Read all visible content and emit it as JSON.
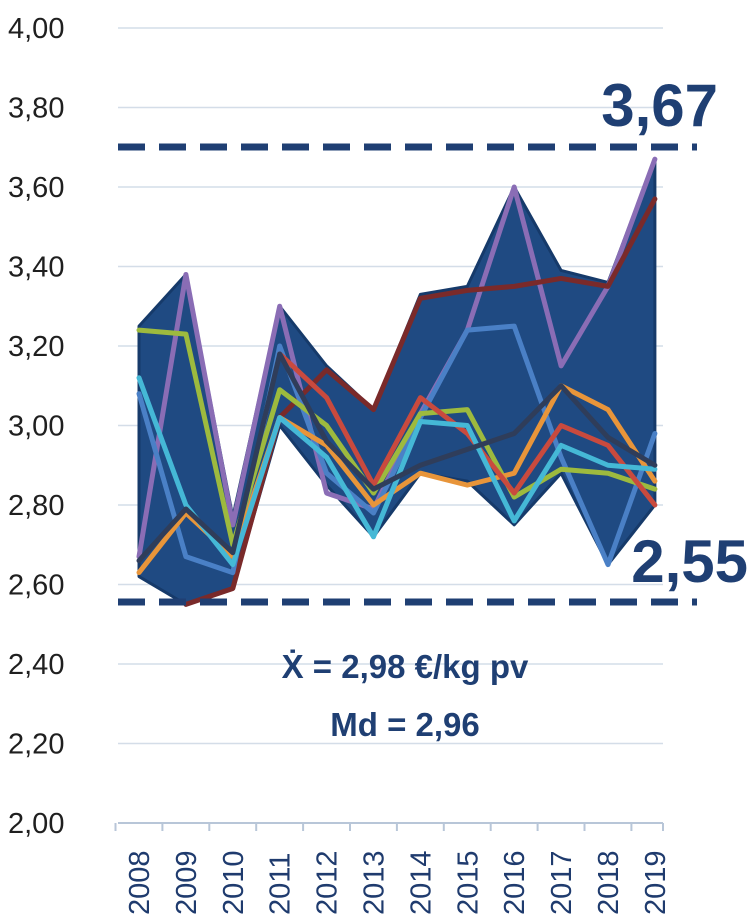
{
  "chart_data": {
    "type": "line",
    "x": [
      "2008",
      "2009",
      "2010",
      "2011",
      "2012",
      "2013",
      "2014",
      "2015",
      "2016",
      "2017",
      "2018",
      "2019"
    ],
    "ylim": [
      2.0,
      4.0
    ],
    "yticks": [
      2.0,
      2.2,
      2.4,
      2.6,
      2.8,
      3.0,
      3.2,
      3.4,
      3.6,
      3.8,
      4.0
    ],
    "ytick_labels": [
      "2,00",
      "2,20",
      "2,40",
      "2,60",
      "2,80",
      "3,00",
      "3,20",
      "3,40",
      "3,60",
      "3,80",
      "4,00"
    ],
    "grid": true,
    "band": {
      "color": "#1f4a82",
      "upper": [
        3.25,
        3.38,
        2.77,
        3.3,
        3.15,
        3.04,
        3.33,
        3.35,
        3.6,
        3.39,
        3.36,
        3.67
      ],
      "lower": [
        2.62,
        2.55,
        2.59,
        3.0,
        2.85,
        2.72,
        2.88,
        2.86,
        2.75,
        2.88,
        2.65,
        2.8
      ]
    },
    "series": [
      {
        "color": "#8a6db5",
        "values": [
          2.67,
          3.38,
          2.75,
          3.3,
          2.83,
          2.79,
          3.03,
          3.24,
          3.6,
          3.15,
          3.35,
          3.67
        ]
      },
      {
        "color": "#7a2a2a",
        "values": [
          null,
          2.55,
          2.59,
          3.02,
          3.14,
          3.04,
          3.32,
          3.34,
          3.35,
          3.37,
          3.35,
          3.57
        ]
      },
      {
        "color": "#4a80c6",
        "values": [
          3.08,
          2.67,
          2.63,
          3.2,
          2.88,
          2.78,
          3.02,
          3.24,
          3.25,
          2.92,
          2.65,
          2.98
        ]
      },
      {
        "color": "#9dba3e",
        "values": [
          3.24,
          3.23,
          2.7,
          3.09,
          3.0,
          2.83,
          3.03,
          3.04,
          2.82,
          2.89,
          2.88,
          2.84
        ]
      },
      {
        "color": "#e8953a",
        "values": [
          2.63,
          2.78,
          2.67,
          3.02,
          2.95,
          2.8,
          2.88,
          2.85,
          2.88,
          3.1,
          3.04,
          2.86
        ]
      },
      {
        "color": "#c94a3e",
        "values": [
          null,
          null,
          null,
          3.18,
          3.07,
          2.85,
          3.07,
          2.98,
          2.83,
          3.0,
          2.95,
          2.8
        ]
      },
      {
        "color": "#45b8d6",
        "values": [
          3.12,
          2.8,
          2.65,
          3.02,
          2.92,
          2.72,
          3.01,
          3.0,
          2.76,
          2.95,
          2.9,
          2.89
        ]
      },
      {
        "color": "#2f3d5a",
        "values": [
          2.66,
          2.79,
          2.68,
          3.18,
          2.96,
          2.84,
          2.9,
          2.94,
          2.98,
          3.1,
          2.97,
          2.9
        ]
      }
    ],
    "max_value": 3.67,
    "min_value": 2.55,
    "max_label": "3,67",
    "min_label": "2,55",
    "reference_line_color": "#1f3f73",
    "stats": {
      "mean_label": "Ẋ = 2,98 €/kg pv",
      "median_label": "Md = 2,96"
    }
  }
}
